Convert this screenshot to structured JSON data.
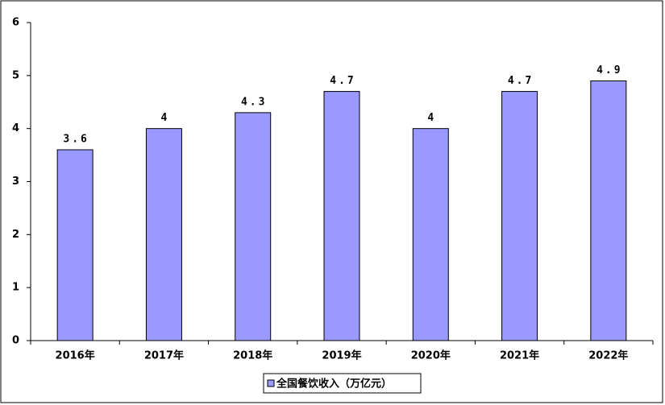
{
  "chart_data": {
    "type": "bar",
    "categories": [
      "2016年",
      "2017年",
      "2018年",
      "2019年",
      "2020年",
      "2021年",
      "2022年"
    ],
    "series": [
      {
        "name": "全国餐饮收入（万亿元）",
        "color": "#9999ff",
        "values": [
          3.6,
          4,
          4.3,
          4.7,
          4,
          4.7,
          4.9
        ]
      }
    ],
    "ylim": [
      0,
      6
    ],
    "yticks": [
      0,
      1,
      2,
      3,
      4,
      5,
      6
    ],
    "legend": "bottom"
  }
}
